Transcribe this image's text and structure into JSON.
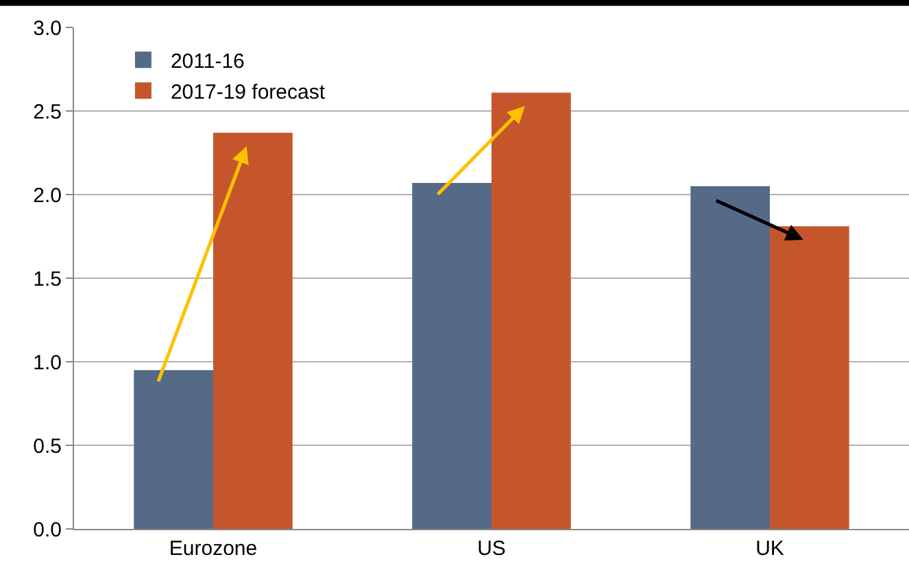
{
  "chart_data": {
    "type": "bar",
    "categories": [
      "Eurozone",
      "US",
      "UK"
    ],
    "series": [
      {
        "name": "2011-16",
        "color": "#556a87",
        "values": [
          0.95,
          2.07,
          2.05
        ]
      },
      {
        "name": "2017-19 forecast",
        "color": "#c5562c",
        "values": [
          2.37,
          2.61,
          1.81
        ]
      }
    ],
    "ylim": [
      0,
      3
    ],
    "yticks": [
      {
        "value": 0,
        "label": "0.0"
      },
      {
        "value": 0.5,
        "label": "0.5"
      },
      {
        "value": 1,
        "label": "1.0"
      },
      {
        "value": 1.5,
        "label": "1.5"
      },
      {
        "value": 2,
        "label": "2.0"
      },
      {
        "value": 2.5,
        "label": "2.5"
      },
      {
        "value": 3,
        "label": "3.0"
      }
    ],
    "grid": "y",
    "legend": "top left"
  }
}
